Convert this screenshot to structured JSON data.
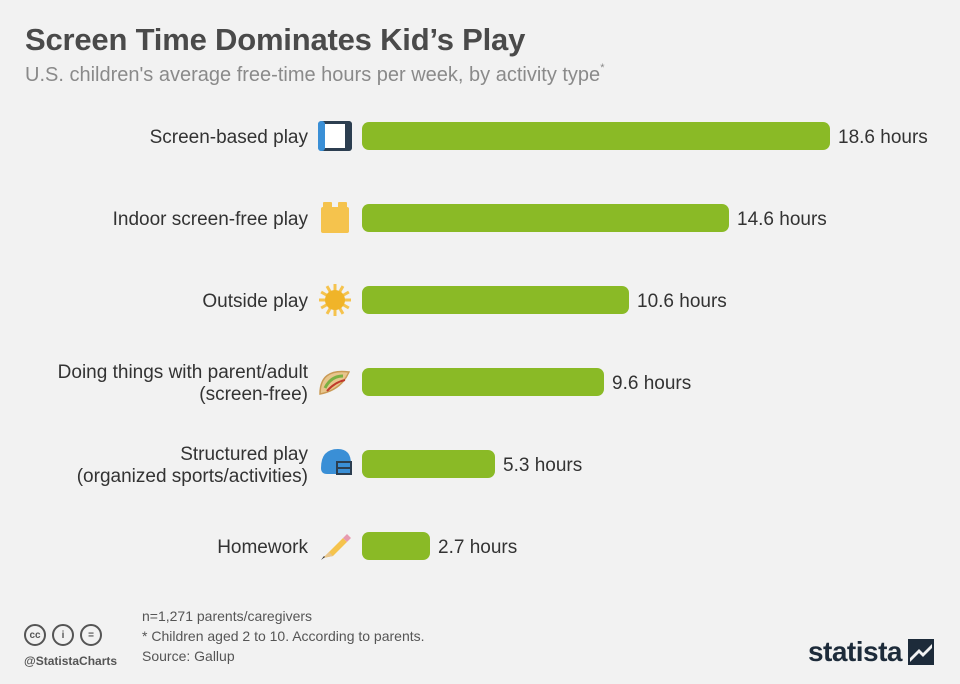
{
  "header": {
    "title": "Screen Time Dominates Kid’s Play",
    "subtitle": "U.S. children's average free-time hours per week, by activity type",
    "subtitle_marker": "*"
  },
  "chart_data": {
    "type": "bar",
    "orientation": "horizontal",
    "categories": [
      [
        "Screen-based play"
      ],
      [
        "Indoor screen-free play"
      ],
      [
        "Outside play"
      ],
      [
        "Doing things with parent/adult",
        "(screen-free)"
      ],
      [
        "Structured play",
        "(organized sports/activities)"
      ],
      [
        "Homework"
      ]
    ],
    "values": [
      18.6,
      14.6,
      10.6,
      9.6,
      5.3,
      2.7
    ],
    "value_labels": [
      "18.6 hours",
      "14.6 hours",
      "10.6 hours",
      "9.6 hours",
      "5.3 hours",
      "2.7 hours"
    ],
    "icons": [
      "game-console-icon",
      "toy-block-icon",
      "sun-icon",
      "taco-icon",
      "football-helmet-icon",
      "pencil-icon"
    ],
    "bar_color": "#8aba26",
    "grid": false,
    "legend": "none"
  },
  "footer": {
    "notes": [
      "n=1,271 parents/caregivers",
      "* Children aged 2 to 10. According to parents.",
      "Source: Gallup"
    ],
    "handle": "@StatistaCharts",
    "license_icons": [
      "cc",
      "i",
      "="
    ],
    "brand": "statista"
  }
}
